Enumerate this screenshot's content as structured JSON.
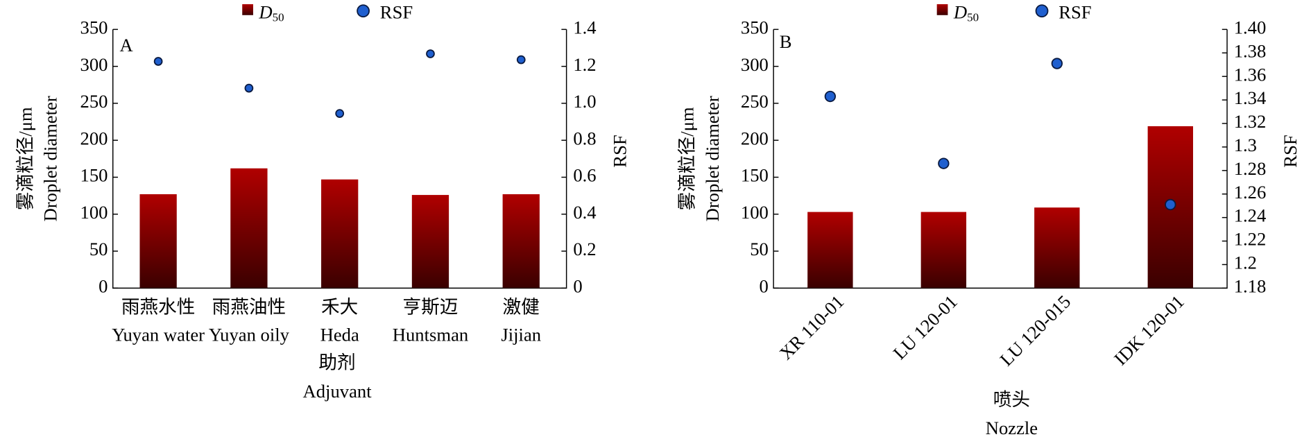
{
  "chart_data": [
    {
      "type": "bar",
      "panel": "A",
      "categories": [
        [
          "雨燕水性",
          "Yuyan water"
        ],
        [
          "雨燕油性",
          "Yuyan oily"
        ],
        [
          "禾大",
          "Heda"
        ],
        [
          "亨斯迈",
          "Huntsman"
        ],
        [
          "激健",
          "Jijian"
        ]
      ],
      "x_label": [
        "助剂",
        "Adjuvant"
      ],
      "y_label": [
        "雾滴粒径/μm",
        "Droplet diameter"
      ],
      "y2_label": "RSF",
      "ylim": [
        0,
        350
      ],
      "yticks": [
        0,
        50,
        100,
        150,
        200,
        250,
        300,
        350
      ],
      "y2lim": [
        0,
        1.4
      ],
      "y2ticks": [
        {
          "value": 0,
          "label": "0"
        },
        {
          "value": 0.2,
          "label": "0.2"
        },
        {
          "value": 0.4,
          "label": "0.4"
        },
        {
          "value": 0.6,
          "label": "0.6"
        },
        {
          "value": 0.8,
          "label": "0.8"
        },
        {
          "value": 1.0,
          "label": "1.0"
        },
        {
          "value": 1.2,
          "label": "1.2"
        },
        {
          "value": 1.4,
          "label": "1.4"
        }
      ],
      "series": [
        {
          "name": "D50",
          "type": "bar",
          "color": "#b00000",
          "values": [
            127,
            162,
            147,
            126,
            127
          ]
        },
        {
          "name": "RSF",
          "type": "scatter",
          "axis": "y2",
          "color": "#1f5fcf",
          "values": [
            1.227,
            1.082,
            0.945,
            1.268,
            1.236
          ]
        }
      ]
    },
    {
      "type": "bar",
      "panel": "B",
      "categories": [
        [
          "XR 110-01"
        ],
        [
          "LU 120-01"
        ],
        [
          "LU 120-015"
        ],
        [
          "IDK 120-01"
        ]
      ],
      "x_label": [
        "喷头",
        "Nozzle"
      ],
      "y_label": [
        "雾滴粒径/μm",
        "Droplet diameter"
      ],
      "y2_label": "RSF",
      "ylim": [
        0,
        350
      ],
      "yticks": [
        0,
        50,
        100,
        150,
        200,
        250,
        300,
        350
      ],
      "y2lim": [
        1.18,
        1.4
      ],
      "y2ticks": [
        1.18,
        1.2,
        1.22,
        1.24,
        1.26,
        1.28,
        1.3,
        1.32,
        1.34,
        1.36,
        1.38,
        {
          "value": 1.4,
          "label": "1.40"
        }
      ],
      "series": [
        {
          "name": "D50",
          "type": "bar",
          "color": "#b00000",
          "values": [
            103,
            103,
            109,
            219
          ]
        },
        {
          "name": "RSF",
          "type": "scatter",
          "axis": "y2",
          "color": "#1f5fcf",
          "values": [
            1.343,
            1.286,
            1.371,
            1.251
          ]
        }
      ]
    }
  ]
}
